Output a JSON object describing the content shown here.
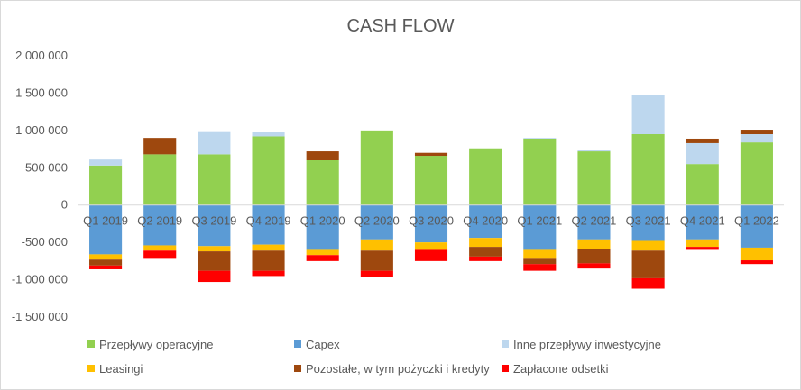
{
  "chart_data": {
    "type": "bar",
    "stacked": true,
    "title": "CASH FLOW",
    "xlabel": "",
    "ylabel": "",
    "ylim": [
      -1500000,
      2000000
    ],
    "ytick_values": [
      2000000,
      1500000,
      1000000,
      500000,
      0,
      -500000,
      -1000000,
      -1500000
    ],
    "ytick_labels": [
      "2 000 000",
      "1 500 000",
      "1 000 000",
      "500 000",
      "0",
      "-500 000",
      "-1 000 000",
      "-1 500 000"
    ],
    "grid": false,
    "legend_position": "bottom",
    "categories": [
      "Q1 2019",
      "Q2 2019",
      "Q3 2019",
      "Q4 2019",
      "Q1 2020",
      "Q2 2020",
      "Q3 2020",
      "Q4 2020",
      "Q1 2021",
      "Q2 2021",
      "Q3 2021",
      "Q4 2021",
      "Q1 2022"
    ],
    "series": [
      {
        "name": "Przepływy operacyjne",
        "color": "#92d050",
        "values": [
          530000,
          680000,
          680000,
          920000,
          600000,
          1000000,
          660000,
          760000,
          890000,
          720000,
          950000,
          550000,
          840000
        ]
      },
      {
        "name": "Capex",
        "color": "#5b9bd5",
        "values": [
          -660000,
          -540000,
          -550000,
          -530000,
          -600000,
          -460000,
          -500000,
          -440000,
          -600000,
          -460000,
          -480000,
          -460000,
          -570000
        ]
      },
      {
        "name": "Inne przepływy inwestycyjne",
        "color": "#bdd7ee",
        "values": [
          80000,
          0,
          310000,
          60000,
          0,
          0,
          0,
          0,
          10000,
          20000,
          520000,
          280000,
          110000
        ]
      },
      {
        "name": "Leasingi",
        "color": "#ffc000",
        "values": [
          -70000,
          -70000,
          -70000,
          -80000,
          -70000,
          -150000,
          -100000,
          -120000,
          -120000,
          -130000,
          -130000,
          -100000,
          -170000
        ]
      },
      {
        "name": "Pozostałe, w tym pożyczki i kredyty",
        "color": "#9e480e",
        "values": [
          -80000,
          220000,
          -260000,
          -270000,
          120000,
          -270000,
          40000,
          -130000,
          -70000,
          -190000,
          -370000,
          60000,
          60000
        ]
      },
      {
        "name": "Zapłacone odsetki",
        "color": "#ff0000",
        "values": [
          -50000,
          -110000,
          -150000,
          -70000,
          -80000,
          -80000,
          -150000,
          -60000,
          -90000,
          -70000,
          -140000,
          -40000,
          -50000
        ]
      }
    ]
  }
}
